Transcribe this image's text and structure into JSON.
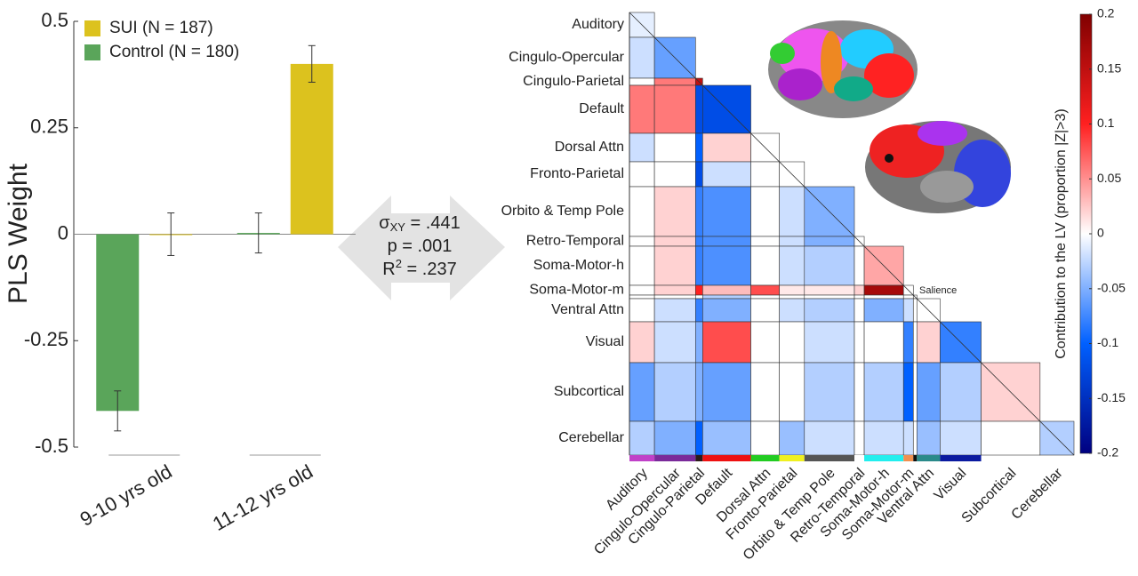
{
  "chart_data": [
    {
      "type": "bar",
      "categories": [
        "9-10 yrs old",
        "11-12 yrs old"
      ],
      "series": [
        {
          "name": "Control (N = 180)",
          "color": "#5aa55a",
          "values": [
            -0.415,
            0.003
          ],
          "errors": [
            0.047,
            0.047
          ]
        },
        {
          "name": "SUI (N = 187)",
          "color": "#dcc21e",
          "values": [
            0.0,
            0.4
          ],
          "errors": [
            0.05,
            0.043
          ]
        }
      ],
      "legend_order": [
        1,
        0
      ],
      "y_label": "PLS Weight",
      "ylim": [
        -0.5,
        0.5
      ],
      "yticks": [
        0.5,
        0.25,
        0,
        -0.25,
        -0.5
      ]
    },
    {
      "type": "annotation",
      "lines": [
        [
          "σ",
          "XY",
          " = .441"
        ],
        [
          "p = .001"
        ],
        [
          "R",
          "2",
          " = .237"
        ]
      ]
    },
    {
      "type": "heatmap",
      "categories": [
        "Auditory",
        "Cingulo-Opercular",
        "Cingulo-Parietal",
        "Default",
        "Dorsal Attn",
        "Fronto-Parietal",
        "Orbito & Temp Pole",
        "Retro-Temporal",
        "Soma-Motor-h",
        "Soma-Motor-m",
        null,
        "Ventral Attn",
        "Visual",
        "Subcortical",
        "Cerebellar"
      ],
      "annotation": "Salience",
      "sizes": [
        28,
        46,
        8,
        54,
        32,
        28,
        56,
        11,
        44,
        11,
        4,
        26,
        46,
        66,
        38
      ],
      "network_colors": [
        "#c040c8",
        "#7a2a9a",
        "#2a1a1a",
        "#ee1111",
        "#22cc22",
        "#f0f020",
        "#555555",
        "#ffffff",
        "#22eeee",
        "#f09050",
        "#111111",
        "#2a8a8a",
        "#0a1aa0",
        null,
        null
      ],
      "values": [
        [
          -0.01
        ],
        [
          -0.02,
          -0.06
        ],
        [
          0,
          0.06,
          0.15
        ],
        [
          0.06,
          0.06,
          -0.12,
          -0.12
        ],
        [
          -0.02,
          0,
          -0.1,
          0.02,
          0
        ],
        [
          0,
          0,
          -0.12,
          -0.02,
          0,
          0
        ],
        [
          0,
          0.02,
          -0.08,
          -0.07,
          0,
          -0.02,
          -0.05
        ],
        [
          0,
          0.02,
          -0.08,
          -0.07,
          0,
          -0.02,
          -0.05,
          0
        ],
        [
          0,
          0.02,
          -0.08,
          -0.07,
          0,
          -0.02,
          -0.03,
          0,
          0.04
        ],
        [
          0,
          0.02,
          0.1,
          0.03,
          0.08,
          0.01,
          0.01,
          0.02,
          0.17,
          0
        ],
        [
          0,
          0,
          0,
          -0.03,
          0,
          0,
          0,
          0,
          0,
          0,
          0
        ],
        [
          0,
          -0.02,
          -0.08,
          -0.05,
          0,
          -0.02,
          -0.03,
          0,
          -0.05,
          -0.02,
          0,
          0
        ],
        [
          0.02,
          -0.02,
          -0.05,
          0.08,
          0,
          0,
          -0.02,
          0,
          0,
          -0.08,
          0,
          0.02,
          -0.08
        ],
        [
          -0.06,
          -0.03,
          -0.05,
          -0.06,
          0,
          0,
          -0.03,
          0,
          -0.03,
          -0.1,
          0,
          -0.06,
          -0.03,
          0.02
        ],
        [
          -0.03,
          -0.05,
          -0.1,
          -0.04,
          0,
          -0.04,
          -0.02,
          0,
          -0.02,
          -0.02,
          0,
          -0.04,
          -0.02,
          0,
          -0.03
        ]
      ],
      "colormap": [
        "#000080",
        "#0060ff",
        "#ffffff",
        "#ff2020",
        "#800000"
      ],
      "colorbar_label": "Contribution to the LV (proportion |Z|>3)",
      "clim": [
        -0.2,
        0.2
      ],
      "cticks": [
        0.2,
        0.15,
        0.1,
        0.05,
        0,
        -0.05,
        -0.1,
        -0.15,
        -0.2
      ]
    }
  ]
}
